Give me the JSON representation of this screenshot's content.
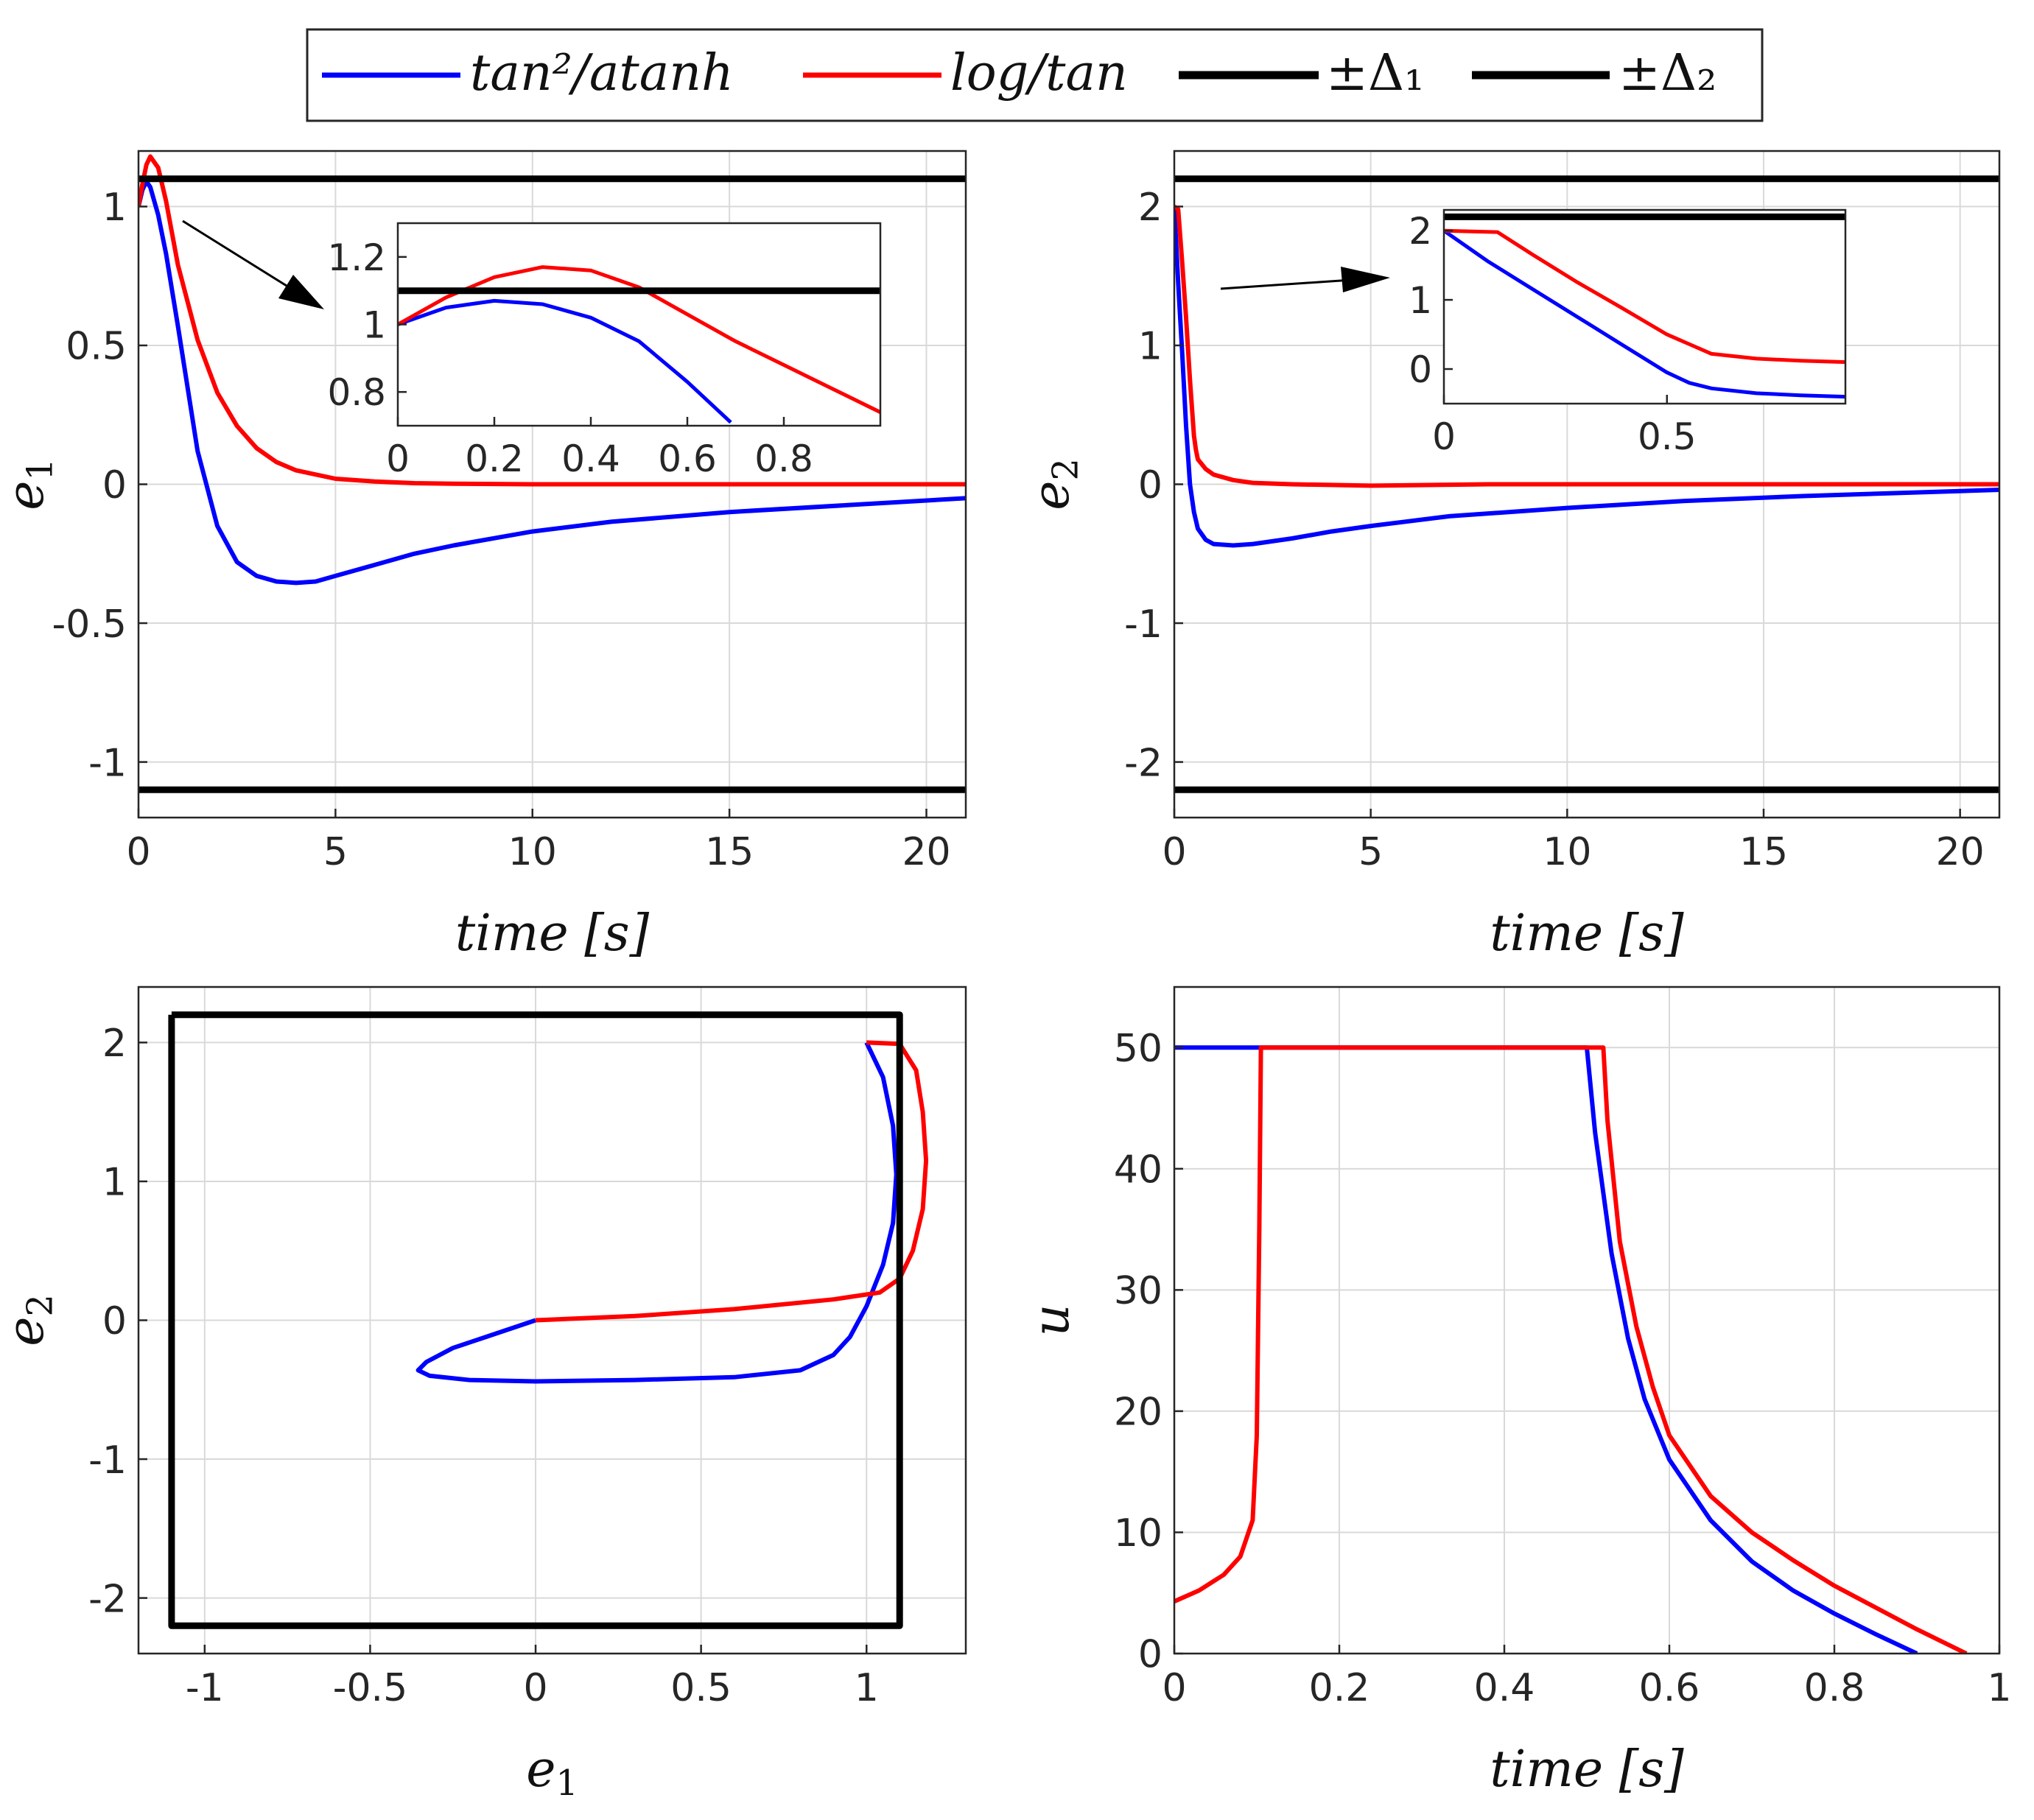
{
  "colors": {
    "blue": "#0000ff",
    "red": "#ff0000",
    "black": "#000000",
    "grid": "#d9d9d9",
    "axis": "#262626"
  },
  "legend": {
    "entries": [
      {
        "label": "tan²/atanh",
        "color": "#0000ff"
      },
      {
        "label": "log/tan",
        "color": "#ff0000"
      },
      {
        "label": "±Δ₁",
        "color": "#000000"
      },
      {
        "label": "±Δ₂",
        "color": "#000000"
      }
    ]
  },
  "chart_data": [
    {
      "id": "e1-vs-time",
      "type": "line",
      "title": "",
      "xlabel": "time [s]",
      "ylabel": "e1",
      "xlim": [
        0,
        21
      ],
      "ylim": [
        -1.2,
        1.2
      ],
      "xticks": [
        0,
        5,
        10,
        15,
        20
      ],
      "xtick_labels": [
        "0",
        "5",
        "10",
        "15",
        "20"
      ],
      "yticks": [
        -1,
        -0.5,
        0,
        0.5,
        1
      ],
      "ytick_labels": [
        "-1",
        "-0.5",
        "0",
        "0.5",
        "1"
      ],
      "grid": true,
      "series": [
        {
          "name": "tan²/atanh",
          "color": "#0000ff",
          "x": [
            0,
            0.1,
            0.2,
            0.3,
            0.5,
            0.7,
            1,
            1.5,
            2,
            2.5,
            3,
            3.5,
            4,
            4.5,
            5,
            6,
            7,
            8,
            10,
            12,
            15,
            18,
            21
          ],
          "y": [
            1.0,
            1.06,
            1.09,
            1.07,
            0.97,
            0.83,
            0.57,
            0.12,
            -0.15,
            -0.28,
            -0.33,
            -0.35,
            -0.355,
            -0.35,
            -0.33,
            -0.29,
            -0.25,
            -0.22,
            -0.17,
            -0.135,
            -0.1,
            -0.075,
            -0.05
          ]
        },
        {
          "name": "log/tan",
          "color": "#ff0000",
          "x": [
            0,
            0.1,
            0.2,
            0.3,
            0.5,
            0.7,
            1,
            1.5,
            2,
            2.5,
            3,
            3.5,
            4,
            5,
            6,
            7,
            8,
            10,
            15,
            21
          ],
          "y": [
            1.0,
            1.08,
            1.15,
            1.18,
            1.14,
            1.02,
            0.79,
            0.52,
            0.33,
            0.21,
            0.13,
            0.08,
            0.05,
            0.02,
            0.01,
            0.004,
            0.002,
            0.0,
            0.0,
            0.0
          ]
        },
        {
          "name": "+Δ₁",
          "color": "#000000",
          "x": [
            0,
            21
          ],
          "y": [
            1.1,
            1.1
          ]
        },
        {
          "name": "-Δ₁",
          "color": "#000000",
          "x": [
            0,
            21
          ],
          "y": [
            -1.1,
            -1.1
          ]
        }
      ],
      "inset": {
        "xlim": [
          0,
          1
        ],
        "ylim": [
          0.7,
          1.3
        ],
        "xticks": [
          0,
          0.2,
          0.4,
          0.6,
          0.8
        ],
        "xtick_labels": [
          "0",
          "0.2",
          "0.4",
          "0.6",
          "0.8"
        ],
        "yticks": [
          0.8,
          1,
          1.2
        ],
        "ytick_labels": [
          "0.8",
          "1",
          "1.2"
        ],
        "series": [
          {
            "name": "tan²/atanh",
            "color": "#0000ff",
            "x": [
              0,
              0.1,
              0.2,
              0.3,
              0.4,
              0.5,
              0.6,
              0.69
            ],
            "y": [
              1.0,
              1.05,
              1.07,
              1.06,
              1.02,
              0.95,
              0.83,
              0.71
            ]
          },
          {
            "name": "log/tan",
            "color": "#ff0000",
            "x": [
              0,
              0.1,
              0.2,
              0.3,
              0.4,
              0.5,
              0.6,
              0.7,
              0.8,
              0.9,
              1.0
            ],
            "y": [
              1.0,
              1.08,
              1.14,
              1.17,
              1.16,
              1.11,
              1.03,
              0.95,
              0.88,
              0.81,
              0.74
            ]
          },
          {
            "name": "Δ₁",
            "color": "#000000",
            "x": [
              0,
              1
            ],
            "y": [
              1.1,
              1.1
            ]
          }
        ]
      }
    },
    {
      "id": "e2-vs-time",
      "type": "line",
      "title": "",
      "xlabel": "time [s]",
      "ylabel": "e2",
      "xlim": [
        0,
        21
      ],
      "ylim": [
        -2.4,
        2.4
      ],
      "xticks": [
        0,
        5,
        10,
        15,
        20
      ],
      "xtick_labels": [
        "0",
        "5",
        "10",
        "15",
        "20"
      ],
      "yticks": [
        -2,
        -1,
        0,
        1,
        2
      ],
      "ytick_labels": [
        "-2",
        "-1",
        "0",
        "1",
        "2"
      ],
      "grid": true,
      "series": [
        {
          "name": "tan²/atanh",
          "color": "#0000ff",
          "x": [
            0,
            0.1,
            0.2,
            0.3,
            0.4,
            0.5,
            0.6,
            0.8,
            1,
            1.5,
            2,
            3,
            4,
            5,
            7,
            10,
            13,
            16,
            21
          ],
          "y": [
            2.0,
            1.45,
            0.95,
            0.42,
            0.0,
            -0.2,
            -0.32,
            -0.4,
            -0.43,
            -0.44,
            -0.43,
            -0.39,
            -0.34,
            -0.3,
            -0.23,
            -0.17,
            -0.12,
            -0.085,
            -0.04
          ]
        },
        {
          "name": "log/tan",
          "color": "#ff0000",
          "x": [
            0,
            0.1,
            0.2,
            0.3,
            0.4,
            0.5,
            0.55,
            0.6,
            0.8,
            1,
            1.5,
            2,
            3,
            5,
            8,
            21
          ],
          "y": [
            2.0,
            1.98,
            1.6,
            1.2,
            0.75,
            0.35,
            0.25,
            0.18,
            0.11,
            0.07,
            0.03,
            0.01,
            0.0,
            -0.01,
            0.0,
            0.0
          ]
        },
        {
          "name": "+Δ₂",
          "color": "#000000",
          "x": [
            0,
            21
          ],
          "y": [
            2.2,
            2.2
          ]
        },
        {
          "name": "-Δ₂",
          "color": "#000000",
          "x": [
            0,
            21
          ],
          "y": [
            -2.2,
            -2.2
          ]
        }
      ],
      "inset": {
        "xlim": [
          0,
          0.9
        ],
        "ylim": [
          -0.5,
          2.3
        ],
        "xticks": [
          0,
          0.5
        ],
        "xtick_labels": [
          "0",
          "0.5"
        ],
        "yticks": [
          0,
          1,
          2
        ],
        "ytick_labels": [
          "0",
          "1",
          "2"
        ],
        "series": [
          {
            "name": "tan²/atanh",
            "color": "#0000ff",
            "x": [
              0,
              0.1,
              0.2,
              0.3,
              0.4,
              0.5,
              0.55,
              0.6,
              0.7,
              0.8,
              0.9
            ],
            "y": [
              2.0,
              1.55,
              1.15,
              0.75,
              0.35,
              -0.05,
              -0.2,
              -0.28,
              -0.35,
              -0.38,
              -0.4
            ]
          },
          {
            "name": "log/tan",
            "color": "#ff0000",
            "x": [
              0,
              0.12,
              0.2,
              0.3,
              0.4,
              0.5,
              0.6,
              0.7,
              0.8,
              0.9
            ],
            "y": [
              2.0,
              1.98,
              1.65,
              1.25,
              0.88,
              0.5,
              0.22,
              0.15,
              0.12,
              0.1
            ]
          },
          {
            "name": "Δ₂",
            "color": "#000000",
            "x": [
              0,
              0.9
            ],
            "y": [
              2.2,
              2.2
            ]
          }
        ]
      }
    },
    {
      "id": "phase-portrait",
      "type": "line",
      "title": "",
      "xlabel": "e1",
      "ylabel": "e2",
      "xlim": [
        -1.2,
        1.3
      ],
      "ylim": [
        -2.4,
        2.4
      ],
      "xticks": [
        -1,
        -0.5,
        0,
        0.5,
        1
      ],
      "xtick_labels": [
        "-1",
        "-0.5",
        "0",
        "0.5",
        "1"
      ],
      "yticks": [
        -2,
        -1,
        0,
        1,
        2
      ],
      "ytick_labels": [
        "-2",
        "-1",
        "0",
        "1",
        "2"
      ],
      "grid": true,
      "series": [
        {
          "name": "tan²/atanh",
          "color": "#0000ff",
          "x": [
            1.0,
            1.05,
            1.08,
            1.09,
            1.08,
            1.05,
            1.0,
            0.95,
            0.9,
            0.8,
            0.6,
            0.3,
            0.0,
            -0.2,
            -0.32,
            -0.355,
            -0.33,
            -0.25,
            -0.15,
            0.0
          ],
          "y": [
            2.0,
            1.75,
            1.4,
            1.05,
            0.7,
            0.4,
            0.1,
            -0.12,
            -0.25,
            -0.36,
            -0.41,
            -0.43,
            -0.44,
            -0.43,
            -0.4,
            -0.36,
            -0.3,
            -0.2,
            -0.12,
            0.0
          ]
        },
        {
          "name": "log/tan",
          "color": "#ff0000",
          "x": [
            1.0,
            1.1,
            1.15,
            1.17,
            1.18,
            1.17,
            1.14,
            1.1,
            1.04,
            0.9,
            0.6,
            0.3,
            0.0
          ],
          "y": [
            2.0,
            1.99,
            1.8,
            1.5,
            1.15,
            0.8,
            0.5,
            0.3,
            0.2,
            0.15,
            0.08,
            0.03,
            0.0
          ]
        },
        {
          "name": "±Δ box",
          "color": "#000000",
          "x": [
            -1.1,
            1.1,
            1.1,
            -1.1,
            -1.1
          ],
          "y": [
            2.2,
            2.2,
            -2.2,
            -2.2,
            2.2
          ]
        }
      ]
    },
    {
      "id": "u-vs-time",
      "type": "line",
      "title": "",
      "xlabel": "time [s]",
      "ylabel": "u",
      "xlim": [
        0,
        1
      ],
      "ylim": [
        0,
        55
      ],
      "xticks": [
        0,
        0.2,
        0.4,
        0.6,
        0.8,
        1
      ],
      "xtick_labels": [
        "0",
        "0.2",
        "0.4",
        "0.6",
        "0.8",
        "1"
      ],
      "yticks": [
        0,
        10,
        20,
        30,
        40,
        50
      ],
      "ytick_labels": [
        "0",
        "10",
        "20",
        "30",
        "40",
        "50"
      ],
      "grid": true,
      "series": [
        {
          "name": "tan²/atanh",
          "color": "#0000ff",
          "x": [
            0,
            0.5,
            0.51,
            0.53,
            0.55,
            0.57,
            0.6,
            0.65,
            0.7,
            0.75,
            0.8,
            0.85,
            0.9
          ],
          "y": [
            50,
            50,
            43,
            33,
            26,
            21,
            16,
            11,
            7.6,
            5.2,
            3.3,
            1.6,
            0.0
          ]
        },
        {
          "name": "log/tan",
          "color": "#ff0000",
          "x": [
            0,
            0.03,
            0.06,
            0.08,
            0.095,
            0.1,
            0.103,
            0.105,
            0.52,
            0.525,
            0.54,
            0.56,
            0.58,
            0.6,
            0.65,
            0.7,
            0.75,
            0.8,
            0.85,
            0.9,
            0.96
          ],
          "y": [
            4.3,
            5.2,
            6.5,
            8.0,
            11,
            18,
            35,
            50,
            50,
            44,
            34,
            27,
            22,
            18,
            13,
            10,
            7.7,
            5.6,
            3.8,
            2.0,
            0.0
          ]
        }
      ]
    }
  ]
}
